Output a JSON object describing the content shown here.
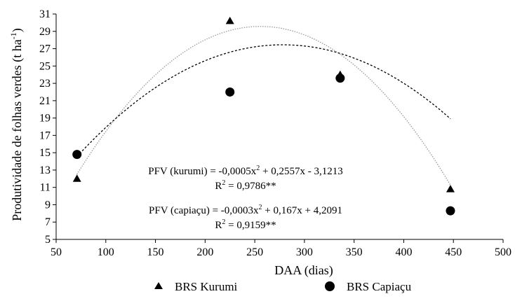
{
  "chart_data": {
    "type": "scatter",
    "xlabel": "DAA (dias)",
    "ylabel": "Produtividade de folhas verdes (t ha",
    "ylabel_sup": "-1",
    "ylabel_close": ")",
    "xlim": [
      50,
      500
    ],
    "ylim": [
      5,
      31
    ],
    "x_ticks": [
      50,
      100,
      150,
      200,
      250,
      300,
      350,
      400,
      450,
      500
    ],
    "y_ticks": [
      5,
      7,
      9,
      11,
      13,
      15,
      17,
      19,
      21,
      23,
      25,
      27,
      29,
      31
    ],
    "grid": false,
    "legend_position": "bottom",
    "series": [
      {
        "name": "BRS Kurumi",
        "marker": "triangle",
        "color": "#000000",
        "x": [
          71,
          225,
          336,
          447
        ],
        "y": [
          12.0,
          30.2,
          24.0,
          10.8
        ],
        "fit": {
          "a": -0.0005,
          "b": 0.2557,
          "c": -3.1213,
          "x_range": [
            71,
            447
          ],
          "line_color": "#999999",
          "dash": "1.5,1.8"
        }
      },
      {
        "name": "BRS Capiaçu",
        "marker": "circle",
        "color": "#000000",
        "x": [
          71,
          225,
          336,
          447
        ],
        "y": [
          14.8,
          22.0,
          23.6,
          8.3
        ],
        "fit": {
          "a": -0.0003,
          "b": 0.167,
          "c": 4.2091,
          "x_range": [
            71,
            447
          ],
          "line_color": "#000000",
          "dash": "3,2.5"
        }
      }
    ],
    "annotations": [
      {
        "pre": "PFV (kurumi) = -0,0005x",
        "sup": "2",
        "post": " + 0,2557x - 3,1213"
      },
      {
        "pre": "R",
        "sup": "2",
        "post": " = 0,9786**"
      },
      {
        "pre": "PFV (capiaçu) = -0,0003x",
        "sup": "2",
        "post": " + 0,167x + 4,2091"
      },
      {
        "pre": "R",
        "sup": "2",
        "post": " = 0,9159**"
      }
    ]
  }
}
